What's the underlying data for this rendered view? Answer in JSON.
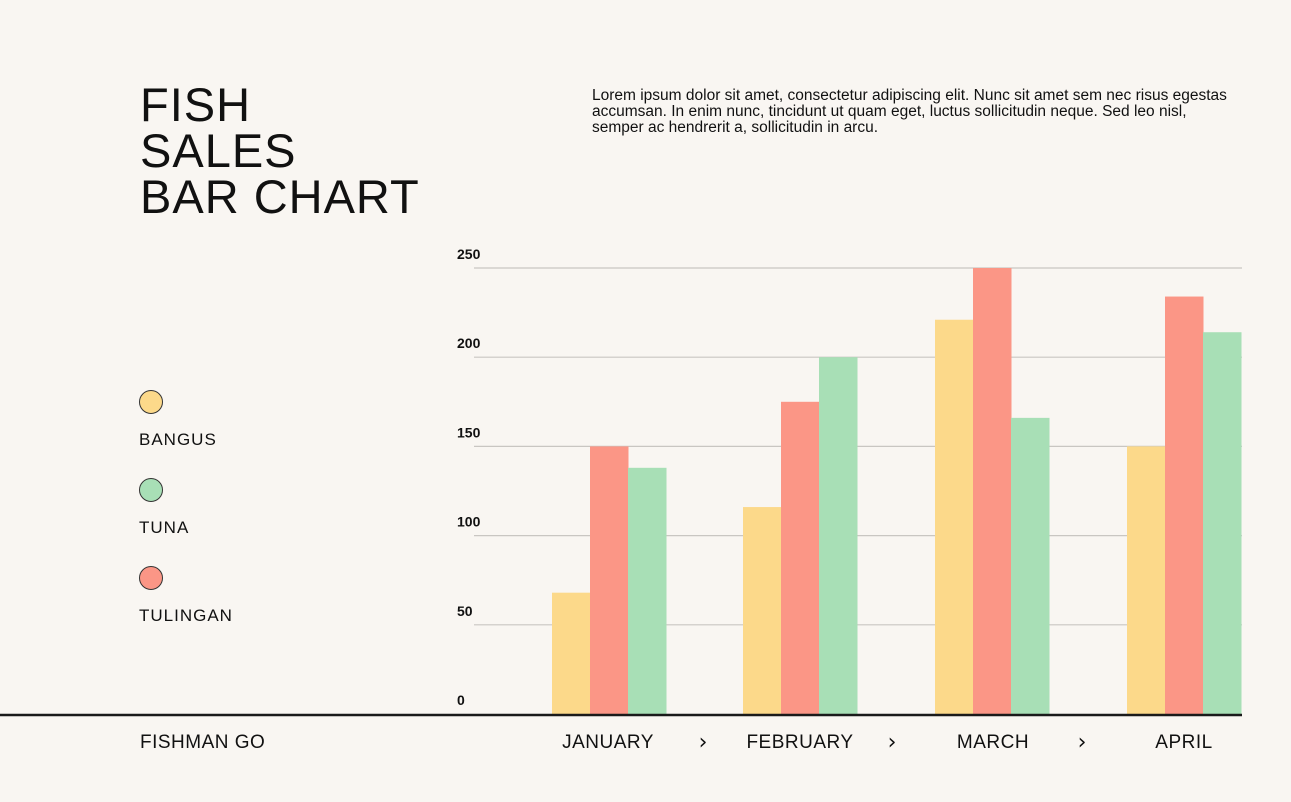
{
  "title_lines": [
    "FISH",
    "SALES",
    "BAR CHART"
  ],
  "description": "Lorem ipsum dolor sit amet, consectetur adipiscing elit. Nunc sit amet sem nec risus egestas accumsan. In enim nunc, tincidunt ut quam eget, luctus sollicitudin neque. Sed leo nisl, semper ac hendrerit a, sollicitudin in arcu.",
  "legend": [
    {
      "label": "BANGUS",
      "color": "#fcd98a"
    },
    {
      "label": "TUNA",
      "color": "#a8dfb6"
    },
    {
      "label": "TULINGAN",
      "color": "#fb9686"
    }
  ],
  "footer_brand": "FISHMAN GO",
  "chevron_icon": "chevron-right-icon",
  "chart_data": {
    "type": "bar",
    "title": "FISH SALES BAR CHART",
    "categories": [
      "JANUARY",
      "FEBRUARY",
      "MARCH",
      "APRIL"
    ],
    "series": [
      {
        "name": "BANGUS",
        "color": "#fcd98a",
        "values": [
          68,
          116,
          221,
          150
        ]
      },
      {
        "name": "TULINGAN",
        "color": "#fb9686",
        "values": [
          150,
          175,
          250,
          234
        ]
      },
      {
        "name": "TUNA",
        "color": "#a8dfb6",
        "values": [
          138,
          200,
          166,
          214
        ]
      }
    ],
    "yticks": [
      0,
      50,
      100,
      150,
      200,
      250
    ],
    "ylim": [
      0,
      250
    ],
    "xlabel": "",
    "ylabel": "",
    "grid": true,
    "legend_position": "left"
  }
}
